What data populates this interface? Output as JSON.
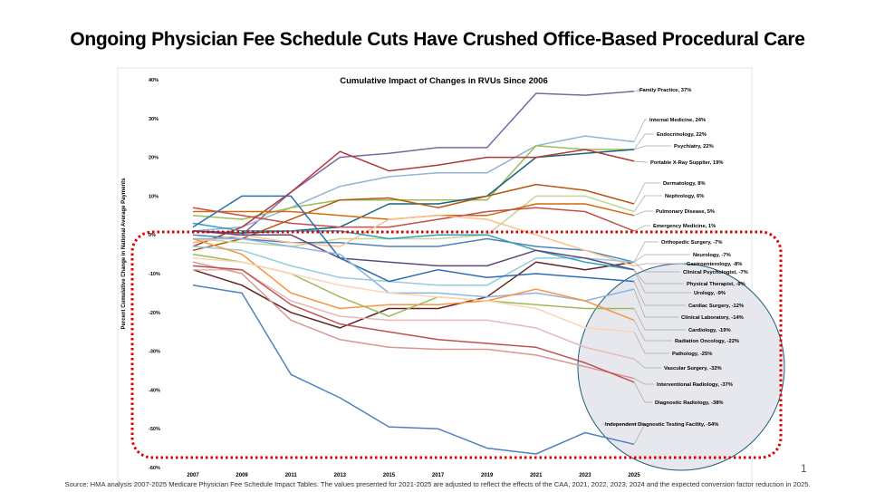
{
  "slide": {
    "title": "Ongoing Physician Fee Schedule Cuts Have Crushed Office-Based Procedural Care",
    "source": "Source: HMA analysis 2007-2025 Medicare Physician Fee Schedule Impact Tables.  The values presented for 2021-2025 are adjusted to reflect the effects of the CAA, 2021, 2022, 2023, 2024 and the expected conversion factor reduction in 2025.",
    "page_number": "1"
  },
  "chart_data": {
    "type": "line",
    "title": "Cumulative Impact of Changes in RVUs Since 2006",
    "xlabel": "",
    "ylabel": "Percent Cumulative Change in National Average Payments",
    "x": [
      2007,
      2009,
      2011,
      2013,
      2015,
      2017,
      2019,
      2021,
      2023,
      2025
    ],
    "x_tick_labels": [
      "2007",
      "2009",
      "2011",
      "2013",
      "2015",
      "2017",
      "2019",
      "2021",
      "2023",
      "2025"
    ],
    "ylim": [
      -60,
      40
    ],
    "y_tick_labels": [
      "40%",
      "30%",
      "20%",
      "10%",
      "0%",
      "-10%",
      "-20%",
      "-30%",
      "-40%",
      "-50%",
      "-60%"
    ],
    "grid": false,
    "legend": "end-of-line labels",
    "highlight": {
      "dotted_box_color": "#e00000",
      "circle_fill": "#e7e8ee",
      "circle_stroke": "#1f5f7a"
    },
    "series": [
      {
        "name": "Family Practice",
        "label": "Family Practice, 37%",
        "color": "#8064a2",
        "values": [
          -2,
          0,
          11,
          20,
          21,
          22.5,
          22.5,
          36.5,
          36,
          37
        ]
      },
      {
        "name": "Internal Medicine",
        "label": "Internal Medicine, 24%",
        "color": "#95b3d7",
        "values": [
          1,
          2,
          7,
          12.5,
          15,
          16,
          16,
          23,
          25.5,
          24
        ]
      },
      {
        "name": "Endocrinology",
        "label": "Endocrinology, 22%",
        "color": "#9bbb59",
        "values": [
          5,
          4,
          7,
          9,
          9,
          9,
          9,
          23,
          22,
          22
        ]
      },
      {
        "name": "Psychiatry",
        "label": "Psychiatry, 22%",
        "color": "#17657d",
        "values": [
          1,
          0.5,
          1,
          2,
          8,
          8,
          10,
          20,
          21,
          22
        ]
      },
      {
        "name": "Portable X-Ray Supplier",
        "label": "Portable X-Ray Supplier, 19%",
        "color": "#b03a36",
        "values": [
          -3,
          2,
          11,
          21.5,
          16.5,
          18,
          20,
          20,
          22,
          19
        ]
      },
      {
        "name": "Dermatology",
        "label": "Dermatology, 8%",
        "color": "#b85410",
        "values": [
          -4,
          -1,
          4,
          9,
          9.5,
          7,
          10,
          13,
          11.5,
          8
        ]
      },
      {
        "name": "Nephrology",
        "label": "Nephrology, 6%",
        "color": "#c3d69b",
        "values": [
          -1,
          -2,
          -3,
          -1,
          -1,
          -1,
          0,
          10,
          10,
          6
        ]
      },
      {
        "name": "Pulmonary Disease",
        "label": "Pulmonary Disease, 5%",
        "color": "#d46a0a",
        "values": [
          6,
          6,
          6,
          5,
          4,
          5,
          5,
          8,
          8,
          5
        ]
      },
      {
        "name": "Emergency Medicine",
        "label": "Emergency Medicine, 1%",
        "color": "#c0504d",
        "values": [
          7,
          5,
          3,
          2,
          2,
          4,
          6,
          7,
          6,
          1
        ]
      },
      {
        "name": "Orthopedic Surgery",
        "label": "Orthopedic Surgery, -7%",
        "color": "#4f81bd",
        "values": [
          0,
          -1,
          -2,
          -2,
          -3,
          -3,
          -1,
          -3,
          -4,
          -7
        ]
      },
      {
        "name": "Neurology",
        "label": "Neurology, -7%",
        "color": "#632423",
        "values": [
          -9,
          -13,
          -20,
          -24,
          -19,
          -19,
          -16,
          -7,
          -9,
          -7
        ]
      },
      {
        "name": "Gastroenterology",
        "label": "Gastroenterology, -8%",
        "color": "#fac090",
        "values": [
          -2,
          0,
          -2,
          -3,
          4,
          5,
          4,
          0,
          -4,
          -8
        ]
      },
      {
        "name": "Clinical Psychologist",
        "label": "Clinical Psychologist, -7%",
        "color": "#93cddd",
        "values": [
          -3,
          -4,
          -8,
          -11,
          -12,
          -13,
          -13,
          -6,
          -6,
          -7
        ]
      },
      {
        "name": "Physical Therapist",
        "label": "Physical Therapist, -9%",
        "color": "#31a0b8",
        "values": [
          3,
          1,
          1,
          1,
          -1,
          0,
          0,
          -4,
          -7,
          -9
        ]
      },
      {
        "name": "Urology",
        "label": "Urology, -9%",
        "color": "#5f497a",
        "values": [
          1,
          0,
          0,
          -6,
          -7,
          -8,
          -8,
          -4,
          -6,
          -9
        ]
      },
      {
        "name": "Cardiac Surgery",
        "label": "Cardiac Surgery, -12%",
        "color": "#2e6db4",
        "values": [
          2,
          10,
          10,
          -6,
          -12,
          -9,
          -11,
          -10,
          -11,
          -12
        ]
      },
      {
        "name": "Clinical Laboratory",
        "label": "Clinical Laboratory, -14%",
        "color": "#8eb4e3",
        "values": [
          -1,
          -1,
          -3,
          -5,
          -15,
          -15,
          -16,
          -15,
          -17,
          -14
        ]
      },
      {
        "name": "Cardiology",
        "label": "Cardiology, -19%",
        "color": "#9bbb59",
        "values": [
          -5,
          -7,
          -10,
          -16,
          -21,
          -16,
          -17,
          -18,
          -19,
          -19
        ]
      },
      {
        "name": "Radiation Oncology",
        "label": "Radiation Oncology, -22%",
        "color": "#f79646",
        "values": [
          -1,
          -5,
          -15,
          -19,
          -18,
          -18,
          -17,
          -14,
          -17,
          -22
        ]
      },
      {
        "name": "Pathology",
        "label": "Pathology, -25%",
        "color": "#fcd5b4",
        "values": [
          -6,
          -7,
          -10,
          -13,
          -15,
          -16,
          -17,
          -19,
          -24,
          -25
        ]
      },
      {
        "name": "Vascular Surgery",
        "label": "Vascular Surgery, -32%",
        "color": "#e6b9b8",
        "values": [
          -9,
          -9,
          -17,
          -21,
          -22,
          -22,
          -22,
          -24,
          -29,
          -32
        ]
      },
      {
        "name": "Interventional Radiology",
        "label": "Interventional Radiology, -37%",
        "color": "#d99694",
        "values": [
          -7,
          -10,
          -22,
          -27,
          -29,
          -29.5,
          -29.5,
          -31,
          -34,
          -37
        ]
      },
      {
        "name": "Diagnostic Radiology",
        "label": "Diagnostic Radiology, -38%",
        "color": "#c0504d",
        "values": [
          -8,
          -9,
          -18,
          -23,
          -25,
          -27,
          -28,
          -29,
          -33,
          -38
        ]
      },
      {
        "name": "Independent Diagnostic Testing Facility",
        "label": "Independent Diagnostic Testing Facility, -54%",
        "color": "#4f81bd",
        "values": [
          -13,
          -15,
          -36,
          -42,
          -49.5,
          -50,
          -55,
          -56.5,
          -51,
          -54
        ]
      }
    ]
  }
}
